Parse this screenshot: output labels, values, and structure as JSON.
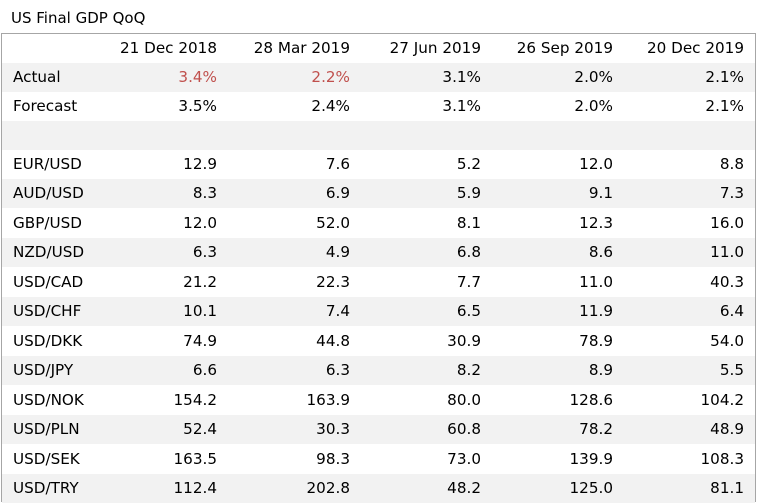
{
  "title": "US Final GDP QoQ",
  "columns": [
    "21 Dec 2018",
    "28 Mar 2019",
    "27 Jun 2019",
    "26 Sep 2019",
    "20 Dec 2019"
  ],
  "actual": {
    "label": "Actual",
    "values": [
      "3.4%",
      "2.2%",
      "3.1%",
      "2.0%",
      "2.1%"
    ],
    "highlight": [
      true,
      true,
      false,
      false,
      false
    ],
    "highlight_color": "#c0504d"
  },
  "forecast": {
    "label": "Forecast",
    "values": [
      "3.5%",
      "2.4%",
      "3.1%",
      "2.0%",
      "2.1%"
    ]
  },
  "pairs": [
    {
      "label": "EUR/USD",
      "values": [
        "12.9",
        "7.6",
        "5.2",
        "12.0",
        "8.8"
      ]
    },
    {
      "label": "AUD/USD",
      "values": [
        "8.3",
        "6.9",
        "5.9",
        "9.1",
        "7.3"
      ]
    },
    {
      "label": "GBP/USD",
      "values": [
        "12.0",
        "52.0",
        "8.1",
        "12.3",
        "16.0"
      ]
    },
    {
      "label": "NZD/USD",
      "values": [
        "6.3",
        "4.9",
        "6.8",
        "8.6",
        "11.0"
      ]
    },
    {
      "label": "USD/CAD",
      "values": [
        "21.2",
        "22.3",
        "7.7",
        "11.0",
        "40.3"
      ]
    },
    {
      "label": "USD/CHF",
      "values": [
        "10.1",
        "7.4",
        "6.5",
        "11.9",
        "6.4"
      ]
    },
    {
      "label": "USD/DKK",
      "values": [
        "74.9",
        "44.8",
        "30.9",
        "78.9",
        "54.0"
      ]
    },
    {
      "label": "USD/JPY",
      "values": [
        "6.6",
        "6.3",
        "8.2",
        "8.9",
        "5.5"
      ]
    },
    {
      "label": "USD/NOK",
      "values": [
        "154.2",
        "163.9",
        "80.0",
        "128.6",
        "104.2"
      ]
    },
    {
      "label": "USD/PLN",
      "values": [
        "52.4",
        "30.3",
        "60.8",
        "78.2",
        "48.9"
      ]
    },
    {
      "label": "USD/SEK",
      "values": [
        "163.5",
        "98.3",
        "73.0",
        "139.9",
        "108.3"
      ]
    },
    {
      "label": "USD/TRY",
      "values": [
        "112.4",
        "202.8",
        "48.2",
        "125.0",
        "81.1"
      ]
    }
  ],
  "colors": {
    "shade": "#f2f2f2",
    "border": "#a6a6a6"
  }
}
